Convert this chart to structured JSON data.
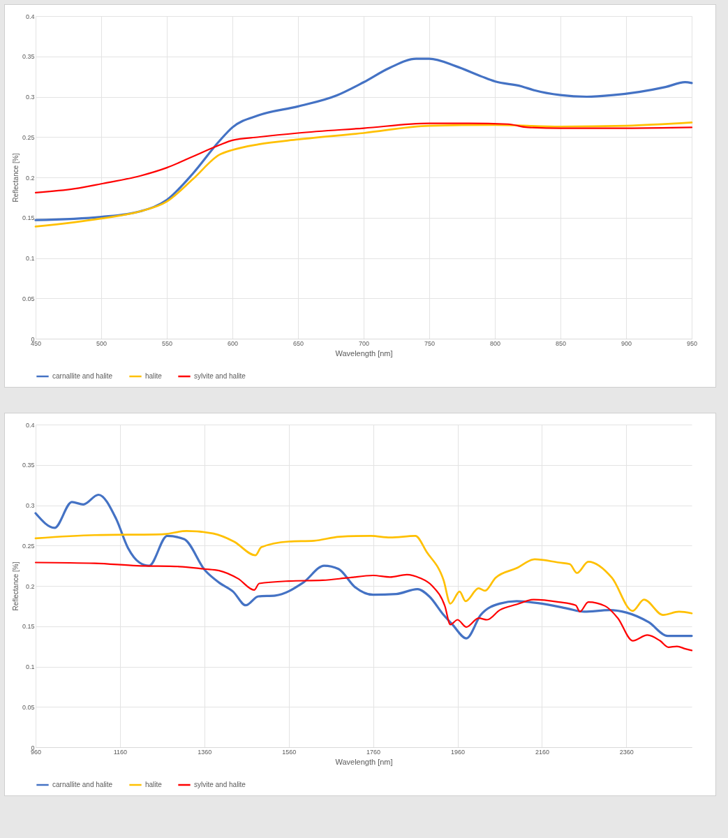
{
  "chart_data": [
    {
      "type": "line",
      "xlabel": "Wavelength [nm]",
      "ylabel": "Reflectance [%]",
      "xlim": [
        450,
        950
      ],
      "xticks": [
        450,
        500,
        550,
        600,
        650,
        700,
        750,
        800,
        850,
        900,
        950
      ],
      "ylim": [
        0,
        0.4
      ],
      "yticks": [
        0,
        0.05,
        0.1,
        0.15,
        0.2,
        0.25,
        0.3,
        0.35,
        0.4
      ],
      "grid": true,
      "legend": "bottom",
      "series": [
        {
          "name": "carnallite and halite",
          "color": "#4472c4",
          "x": [
            450,
            500,
            530,
            550,
            570,
            590,
            600,
            620,
            650,
            680,
            700,
            720,
            740,
            750,
            770,
            790,
            800,
            820,
            830,
            850,
            870,
            890,
            910,
            930,
            945,
            950
          ],
          "values": [
            0.147,
            0.151,
            0.158,
            0.172,
            0.205,
            0.245,
            0.262,
            0.277,
            0.288,
            0.302,
            0.318,
            0.336,
            0.347,
            0.347,
            0.338,
            0.325,
            0.319,
            0.313,
            0.308,
            0.302,
            0.3,
            0.302,
            0.306,
            0.312,
            0.318,
            0.317
          ]
        },
        {
          "name": "halite",
          "color": "#ffc000",
          "x": [
            450,
            500,
            530,
            550,
            570,
            590,
            600,
            620,
            650,
            700,
            750,
            800,
            850,
            900,
            950
          ],
          "values": [
            0.139,
            0.149,
            0.158,
            0.17,
            0.198,
            0.228,
            0.234,
            0.241,
            0.247,
            0.255,
            0.264,
            0.265,
            0.263,
            0.264,
            0.268
          ]
        },
        {
          "name": "sylvite and halite",
          "color": "#ff0000",
          "x": [
            450,
            480,
            500,
            530,
            550,
            570,
            590,
            600,
            620,
            650,
            700,
            750,
            780,
            810,
            825,
            850,
            900,
            950
          ],
          "values": [
            0.181,
            0.186,
            0.192,
            0.202,
            0.212,
            0.226,
            0.24,
            0.246,
            0.25,
            0.255,
            0.261,
            0.267,
            0.267,
            0.266,
            0.262,
            0.261,
            0.261,
            0.262
          ]
        }
      ]
    },
    {
      "type": "line",
      "xlabel": "Wavelength [nm]",
      "ylabel": "Reflectance [%]",
      "xlim": [
        960,
        2515
      ],
      "xticks": [
        960,
        1160,
        1360,
        1560,
        1760,
        1960,
        2160,
        2360
      ],
      "ylim": [
        0,
        0.4
      ],
      "yticks": [
        0,
        0.05,
        0.1,
        0.15,
        0.2,
        0.25,
        0.3,
        0.35,
        0.4
      ],
      "grid": true,
      "legend": "bottom",
      "series": [
        {
          "name": "carnallite and halite",
          "color": "#4472c4",
          "x": [
            960,
            1005,
            1046,
            1073,
            1109,
            1151,
            1179,
            1206,
            1229,
            1272,
            1312,
            1362,
            1395,
            1428,
            1458,
            1488,
            1528,
            1594,
            1644,
            1678,
            1716,
            1760,
            1815,
            1865,
            1893,
            1927,
            1948,
            1981,
            2015,
            2060,
            2100,
            2160,
            2220,
            2260,
            2320,
            2360,
            2413,
            2458,
            2491,
            2515
          ],
          "values": [
            0.29,
            0.272,
            0.304,
            0.301,
            0.313,
            0.283,
            0.247,
            0.229,
            0.225,
            0.262,
            0.258,
            0.219,
            0.204,
            0.193,
            0.176,
            0.187,
            0.188,
            0.204,
            0.225,
            0.221,
            0.199,
            0.189,
            0.19,
            0.196,
            0.187,
            0.164,
            0.152,
            0.135,
            0.164,
            0.178,
            0.181,
            0.178,
            0.172,
            0.168,
            0.17,
            0.167,
            0.155,
            0.138,
            0.138,
            0.138
          ]
        },
        {
          "name": "halite",
          "color": "#ffc000",
          "x": [
            960,
            1100,
            1260,
            1318,
            1380,
            1430,
            1481,
            1495,
            1560,
            1620,
            1680,
            1755,
            1800,
            1860,
            1887,
            1927,
            1943,
            1965,
            1979,
            2010,
            2025,
            2050,
            2100,
            2143,
            2200,
            2226,
            2243,
            2270,
            2326,
            2375,
            2402,
            2447,
            2485,
            2515
          ],
          "values": [
            0.259,
            0.263,
            0.264,
            0.268,
            0.265,
            0.255,
            0.238,
            0.248,
            0.255,
            0.256,
            0.261,
            0.262,
            0.26,
            0.262,
            0.242,
            0.207,
            0.178,
            0.193,
            0.181,
            0.197,
            0.194,
            0.21,
            0.222,
            0.233,
            0.229,
            0.227,
            0.216,
            0.23,
            0.21,
            0.169,
            0.183,
            0.164,
            0.168,
            0.166
          ]
        },
        {
          "name": "sylvite and halite",
          "color": "#ff0000",
          "x": [
            960,
            1100,
            1200,
            1300,
            1360,
            1395,
            1440,
            1478,
            1490,
            1560,
            1640,
            1700,
            1760,
            1800,
            1840,
            1870,
            1900,
            1930,
            1943,
            1960,
            1981,
            2010,
            2030,
            2060,
            2100,
            2140,
            2200,
            2240,
            2250,
            2270,
            2310,
            2340,
            2375,
            2410,
            2440,
            2460,
            2480,
            2500,
            2515
          ],
          "values": [
            0.229,
            0.228,
            0.225,
            0.224,
            0.221,
            0.219,
            0.209,
            0.195,
            0.203,
            0.206,
            0.207,
            0.21,
            0.213,
            0.211,
            0.214,
            0.21,
            0.2,
            0.175,
            0.152,
            0.158,
            0.149,
            0.16,
            0.158,
            0.17,
            0.177,
            0.183,
            0.18,
            0.176,
            0.168,
            0.18,
            0.175,
            0.16,
            0.132,
            0.139,
            0.132,
            0.124,
            0.125,
            0.122,
            0.12
          ]
        }
      ]
    }
  ]
}
